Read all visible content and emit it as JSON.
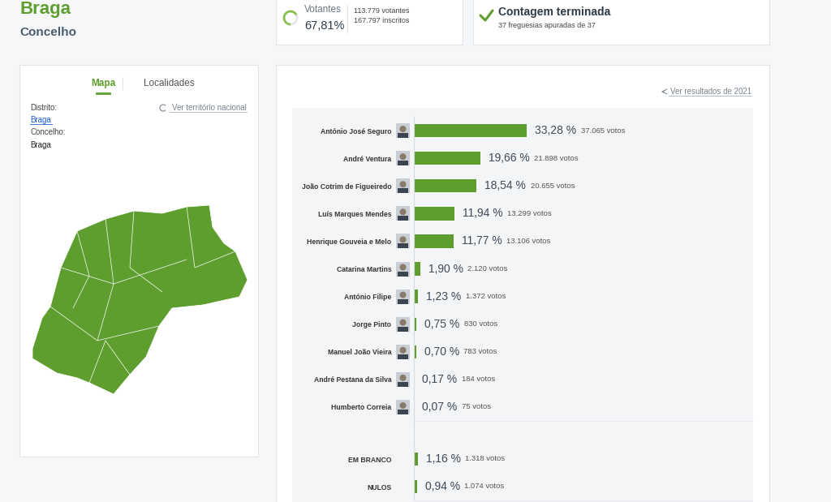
{
  "header": {
    "title": "Braga",
    "subtitle": "Concelho"
  },
  "turnout": {
    "label": "Votantes",
    "value": 67.81,
    "value_label": "67,81%",
    "voters": "113.779 votantes",
    "registered": "167.797 inscritos"
  },
  "count": {
    "title": "Contagem terminada",
    "detail": "37 freguesias apuradas de 37"
  },
  "map_panel": {
    "tabs": [
      "Mapa",
      "Localidades"
    ],
    "district_label": "Distrito:",
    "district": "Braga",
    "municipality_label": "Concelho:",
    "municipality": "Braga",
    "link": "Ver território nacional"
  },
  "results_link": "Ver resultados de 2021",
  "chart_data": [
    {
      "type": "bar",
      "orientation": "horizontal",
      "categories": [
        "António José Seguro",
        "André Ventura",
        "João Cotrim de Figueiredo",
        "Luís Marques Mendes",
        "Henrique Gouveia e Melo",
        "Catarina Martins",
        "António Filipe",
        "Jorge Pinto",
        "Manuel João Vieira",
        "André Pestana da Silva",
        "Humberto Correia"
      ],
      "values": [
        33.28,
        19.66,
        18.54,
        11.94,
        11.77,
        1.9,
        1.23,
        0.75,
        0.7,
        0.17,
        0.07
      ],
      "value_labels": [
        "33,28 %",
        "19,66 %",
        "18,54 %",
        "11,94 %",
        "11,77 %",
        "1,90 %",
        "1,23 %",
        "0,75 %",
        "0,70 %",
        "0,17 %",
        "0,07 %"
      ],
      "votes": [
        37065,
        21898,
        20655,
        13299,
        13106,
        2120,
        1372,
        830,
        783,
        184,
        75
      ],
      "vote_labels": [
        "37.065 votos",
        "21.898 votos",
        "20.655 votos",
        "13.299 votos",
        "13.106 votos",
        "2.120 votos",
        "1.372 votos",
        "830 votos",
        "783 votos",
        "184 votos",
        "75 votos"
      ],
      "color": "#5e9e2f",
      "xlim": [
        0,
        100
      ],
      "xticks": [],
      "tick_labels": "y",
      "data_labels": true
    },
    {
      "type": "bar",
      "orientation": "horizontal",
      "categories": [
        "EM BRANCO",
        "NULOS"
      ],
      "values": [
        1.16,
        0.94
      ],
      "value_labels": [
        "1,16 %",
        "0,94 %"
      ],
      "votes": [
        1318,
        1074
      ],
      "vote_labels": [
        "1.318 votos",
        "1.074 votos"
      ],
      "color": "#5e9e2f",
      "xlim": [
        0,
        100
      ],
      "xticks": [],
      "tick_labels": "y",
      "data_labels": true
    }
  ]
}
